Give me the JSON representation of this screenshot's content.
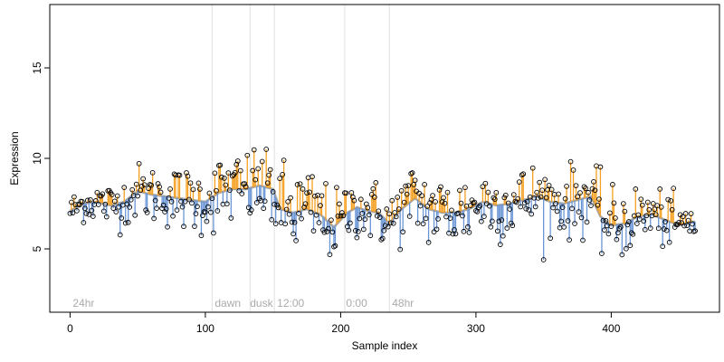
{
  "chart_data": {
    "type": "scatter",
    "title": "",
    "xlabel": "Sample index",
    "ylabel": "Expression",
    "xlim": [
      -15,
      480
    ],
    "ylim": [
      1.5,
      18.5
    ],
    "xticks": [
      0,
      100,
      200,
      300,
      400
    ],
    "yticks": [
      5,
      10,
      15
    ],
    "grid": false,
    "legend": "none",
    "colors": {
      "points_stroke": "#000000",
      "above_fit": "#f5a020",
      "below_fit": "#6b96d6",
      "fit_line": "#a6a6a6",
      "vlines": "#e0e0e0",
      "annotation_text": "#aaaaaa"
    },
    "vertical_lines": [
      105,
      133,
      151,
      203,
      236
    ],
    "annotations": [
      {
        "text": "24hr",
        "x": 2
      },
      {
        "text": "dawn",
        "x": 107
      },
      {
        "text": "dusk",
        "x": 133
      },
      {
        "text": "12:00",
        "x": 153
      },
      {
        "text": "0:00",
        "x": 204
      },
      {
        "text": "48hr",
        "x": 238
      }
    ],
    "annotation_y": 2.0,
    "fit_points": [
      [
        0,
        7.1
      ],
      [
        10,
        7.5
      ],
      [
        20,
        7.6
      ],
      [
        30,
        7.4
      ],
      [
        40,
        7.6
      ],
      [
        50,
        8.2
      ],
      [
        60,
        8.0
      ],
      [
        70,
        7.9
      ],
      [
        80,
        7.8
      ],
      [
        90,
        7.7
      ],
      [
        100,
        7.6
      ],
      [
        110,
        8.1
      ],
      [
        120,
        8.3
      ],
      [
        130,
        8.3
      ],
      [
        140,
        8.5
      ],
      [
        150,
        8.3
      ],
      [
        155,
        7.2
      ],
      [
        165,
        7.0
      ],
      [
        175,
        7.2
      ],
      [
        185,
        6.9
      ],
      [
        195,
        6.2
      ],
      [
        205,
        7.0
      ],
      [
        212,
        7.3
      ],
      [
        220,
        7.1
      ],
      [
        228,
        7.0
      ],
      [
        236,
        6.4
      ],
      [
        245,
        7.2
      ],
      [
        255,
        7.8
      ],
      [
        265,
        7.2
      ],
      [
        275,
        7.0
      ],
      [
        285,
        7.0
      ],
      [
        295,
        7.2
      ],
      [
        305,
        7.6
      ],
      [
        315,
        7.4
      ],
      [
        325,
        7.5
      ],
      [
        335,
        7.7
      ],
      [
        345,
        7.9
      ],
      [
        355,
        7.6
      ],
      [
        365,
        7.5
      ],
      [
        375,
        7.7
      ],
      [
        385,
        7.9
      ],
      [
        392,
        6.8
      ],
      [
        400,
        6.3
      ],
      [
        410,
        6.4
      ],
      [
        420,
        6.8
      ],
      [
        430,
        6.9
      ],
      [
        440,
        6.6
      ],
      [
        450,
        6.3
      ],
      [
        460,
        6.5
      ]
    ],
    "noise_amplitude": [
      [
        0,
        0.45
      ],
      [
        50,
        0.75
      ],
      [
        100,
        0.95
      ],
      [
        130,
        1.1
      ],
      [
        150,
        1.3
      ],
      [
        165,
        1.3
      ],
      [
        200,
        0.9
      ],
      [
        236,
        0.85
      ],
      [
        260,
        1.1
      ],
      [
        300,
        1.05
      ],
      [
        340,
        0.95
      ],
      [
        380,
        1.0
      ],
      [
        400,
        1.0
      ],
      [
        430,
        0.8
      ],
      [
        460,
        0.6
      ]
    ],
    "point_count": 463,
    "point_step": 1
  }
}
